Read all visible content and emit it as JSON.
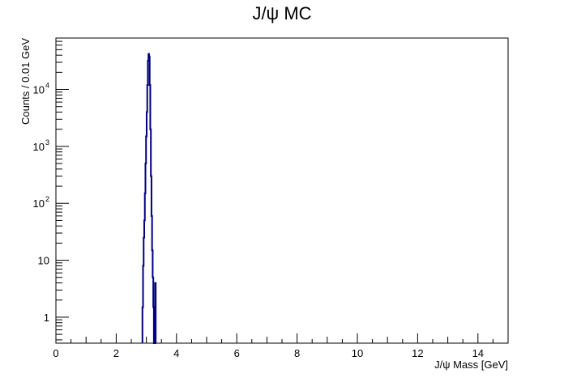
{
  "chart_data": {
    "type": "histogram",
    "title": "J/ψ MC",
    "xlabel": "J/ψ Mass [GeV]",
    "ylabel": "Counts / 0.01 GeV",
    "xlim": [
      0,
      15
    ],
    "ylim": [
      0.35,
      80000
    ],
    "yscale": "log",
    "grid": false,
    "line_color": "#000080",
    "x_ticks": [
      {
        "value": 0,
        "label": "0"
      },
      {
        "value": 2,
        "label": "2"
      },
      {
        "value": 4,
        "label": "4"
      },
      {
        "value": 6,
        "label": "6"
      },
      {
        "value": 8,
        "label": "8"
      },
      {
        "value": 10,
        "label": "10"
      },
      {
        "value": 12,
        "label": "12"
      },
      {
        "value": 14,
        "label": "14"
      }
    ],
    "y_ticks": [
      {
        "value": 1,
        "base": "1",
        "exp": ""
      },
      {
        "value": 10,
        "base": "10",
        "exp": ""
      },
      {
        "value": 100,
        "base": "10",
        "exp": "2"
      },
      {
        "value": 1000,
        "base": "10",
        "exp": "3"
      },
      {
        "value": 10000,
        "base": "10",
        "exp": "4"
      }
    ],
    "bins": [
      {
        "x": 2.88,
        "y": 1.5
      },
      {
        "x": 2.9,
        "y": 8
      },
      {
        "x": 2.92,
        "y": 25
      },
      {
        "x": 2.94,
        "y": 50
      },
      {
        "x": 2.96,
        "y": 150
      },
      {
        "x": 2.98,
        "y": 500
      },
      {
        "x": 3.0,
        "y": 1500
      },
      {
        "x": 3.02,
        "y": 4000
      },
      {
        "x": 3.04,
        "y": 12000
      },
      {
        "x": 3.06,
        "y": 32000
      },
      {
        "x": 3.08,
        "y": 42000
      },
      {
        "x": 3.1,
        "y": 38000
      },
      {
        "x": 3.12,
        "y": 12000
      },
      {
        "x": 3.14,
        "y": 2000
      },
      {
        "x": 3.16,
        "y": 300
      },
      {
        "x": 3.18,
        "y": 60
      },
      {
        "x": 3.2,
        "y": 15
      },
      {
        "x": 3.22,
        "y": 5
      },
      {
        "x": 3.24,
        "y": 1.5
      },
      {
        "x": 3.26,
        "y": 0.35
      },
      {
        "x": 3.28,
        "y": 0.35
      },
      {
        "x": 3.3,
        "y": 4
      },
      {
        "x": 3.32,
        "y": 0.35
      }
    ],
    "bin_width": 0.02
  }
}
